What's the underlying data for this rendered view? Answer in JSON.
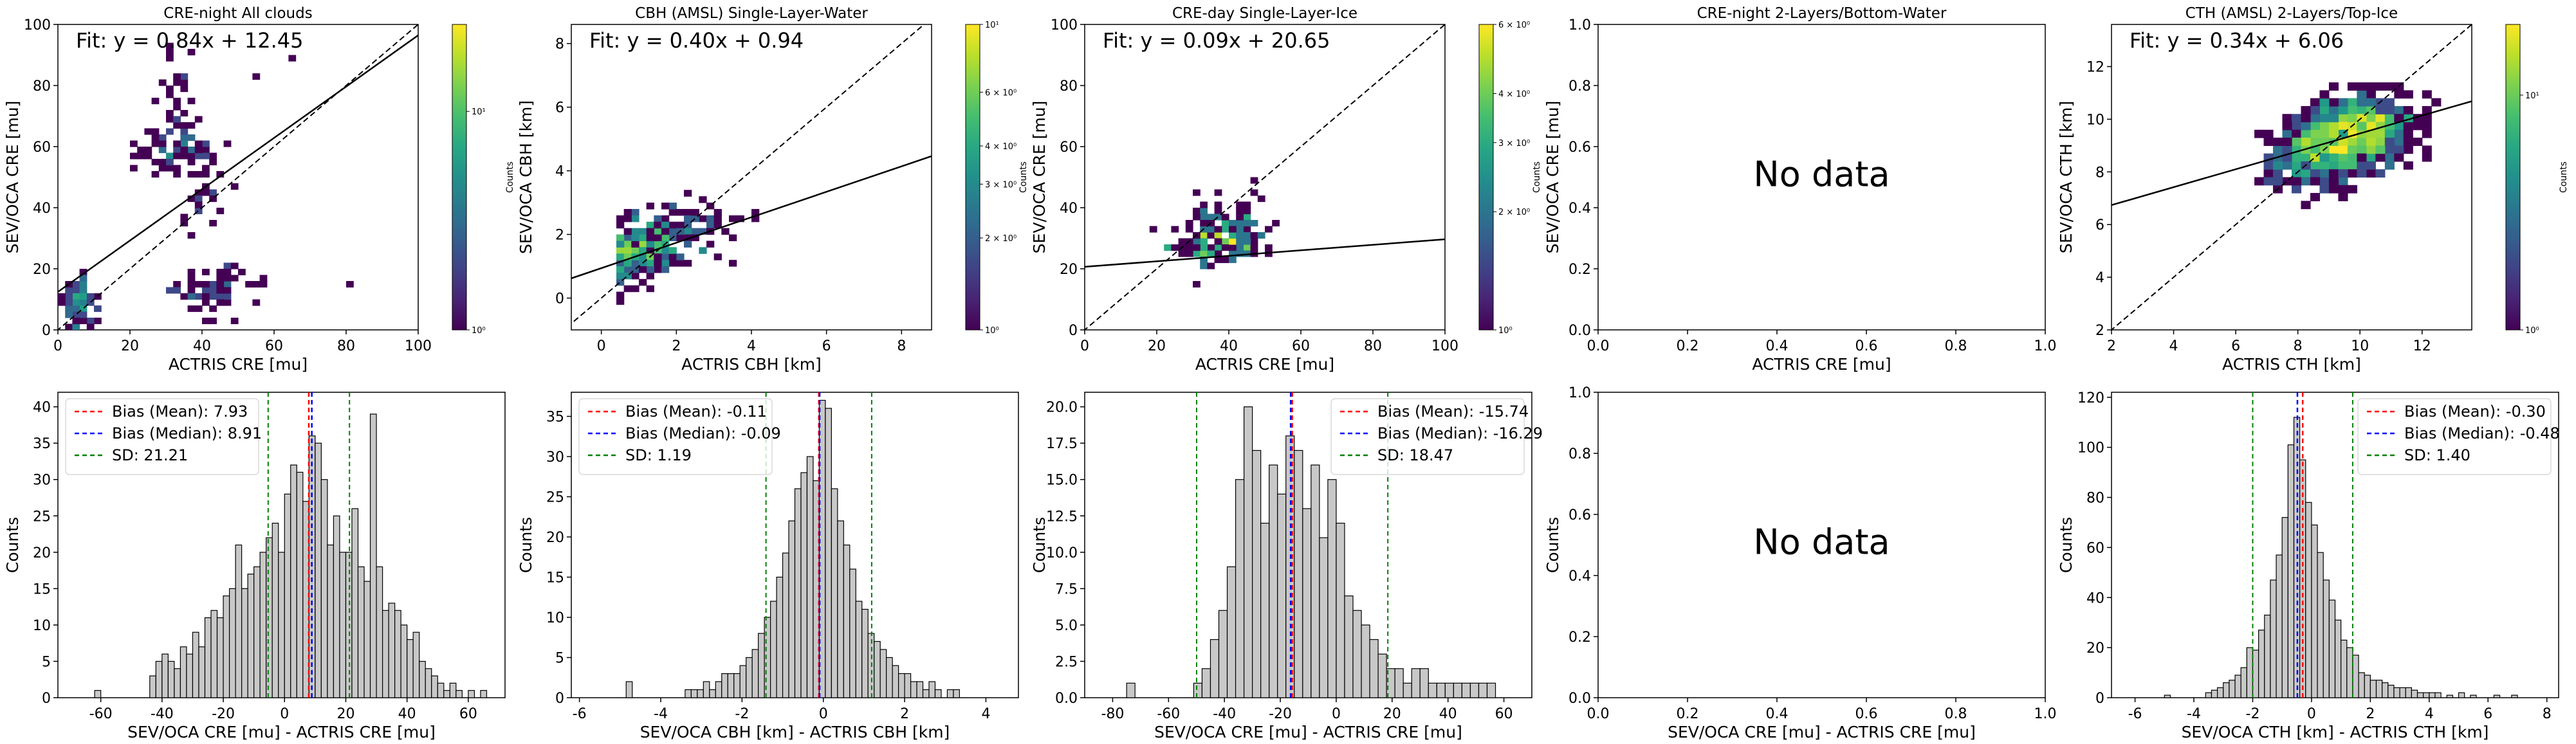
{
  "figure": {
    "colorbar_label": "Counts"
  },
  "chart_data": [
    {
      "type": "heatmap",
      "title": "CRE-night All clouds",
      "xlabel": "ACTRIS CRE [mu]",
      "ylabel": "SEV/OCA CRE [mu]",
      "fit_text": "Fit: y = 0.84x + 12.45",
      "fit": {
        "slope": 0.84,
        "intercept": 12.45
      },
      "xlim": [
        0,
        100
      ],
      "ylim": [
        0,
        100
      ],
      "xticks": [
        0,
        20,
        40,
        60,
        80,
        100
      ],
      "yticks": [
        0,
        20,
        40,
        60,
        80,
        100
      ],
      "bin": 2,
      "colorbar": {
        "scale": "log",
        "ticks": [
          {
            "v": 1,
            "t": "10⁰"
          },
          {
            "v": 10,
            "t": "10¹"
          }
        ],
        "range": [
          1,
          25
        ]
      },
      "grid": false
    },
    {
      "type": "heatmap",
      "title": "CBH (AMSL) Single-Layer-Water",
      "xlabel": "ACTRIS CBH [km]",
      "ylabel": "SEV/OCA CBH [km]",
      "fit_text": "Fit: y = 0.40x + 0.94",
      "fit": {
        "slope": 0.4,
        "intercept": 0.94
      },
      "xlim": [
        -0.8,
        8.8
      ],
      "ylim": [
        -1,
        8.6
      ],
      "xticks": [
        0,
        2,
        4,
        6,
        8
      ],
      "yticks": [
        0,
        2,
        4,
        6,
        8
      ],
      "bin": 0.2,
      "colorbar": {
        "scale": "log",
        "ticks": [
          {
            "v": 1,
            "t": "10⁰"
          },
          {
            "v": 2,
            "t": "2 × 10⁰"
          },
          {
            "v": 3,
            "t": "3 × 10⁰"
          },
          {
            "v": 4,
            "t": "4 × 10⁰"
          },
          {
            "v": 6,
            "t": "6 × 10⁰"
          },
          {
            "v": 10,
            "t": "10¹"
          }
        ],
        "range": [
          1,
          10
        ]
      },
      "grid": false
    },
    {
      "type": "heatmap",
      "title": "CRE-day Single-Layer-Ice",
      "xlabel": "ACTRIS CRE [mu]",
      "ylabel": "SEV/OCA CRE [mu]",
      "fit_text": "Fit: y = 0.09x + 20.65",
      "fit": {
        "slope": 0.09,
        "intercept": 20.65
      },
      "xlim": [
        0,
        100
      ],
      "ylim": [
        0,
        100
      ],
      "xticks": [
        0,
        20,
        40,
        60,
        80,
        100
      ],
      "yticks": [
        0,
        20,
        40,
        60,
        80,
        100
      ],
      "bin": 2,
      "colorbar": {
        "scale": "log",
        "ticks": [
          {
            "v": 1,
            "t": "10⁰"
          },
          {
            "v": 2,
            "t": "2 × 10⁰"
          },
          {
            "v": 3,
            "t": "3 × 10⁰"
          },
          {
            "v": 4,
            "t": "4 × 10⁰"
          },
          {
            "v": 6,
            "t": "6 × 10⁰"
          }
        ],
        "range": [
          1,
          6
        ]
      },
      "grid": false
    },
    {
      "type": "heatmap",
      "title": "CRE-night 2-Layers/Bottom-Water",
      "xlabel": "ACTRIS CRE [mu]",
      "ylabel": "SEV/OCA CRE [mu]",
      "empty_text": "No data",
      "xlim": [
        0,
        1
      ],
      "ylim": [
        0,
        1
      ],
      "xticks": [
        0.0,
        0.2,
        0.4,
        0.6,
        0.8,
        1.0
      ],
      "yticks": [
        0.0,
        0.2,
        0.4,
        0.6,
        0.8,
        1.0
      ],
      "grid": false
    },
    {
      "type": "heatmap",
      "title": "CTH (AMSL) 2-Layers/Top-Ice",
      "xlabel": "ACTRIS CTH [km]",
      "ylabel": "SEV/OCA CTH [km]",
      "fit_text": "Fit: y = 0.34x + 6.06",
      "fit": {
        "slope": 0.34,
        "intercept": 6.06
      },
      "xlim": [
        2,
        13.6
      ],
      "ylim": [
        2,
        13.6
      ],
      "xticks": [
        2,
        4,
        6,
        8,
        10,
        12
      ],
      "yticks": [
        2,
        4,
        6,
        8,
        10,
        12
      ],
      "bin": 0.3,
      "colorbar": {
        "scale": "log",
        "ticks": [
          {
            "v": 1,
            "t": "10⁰"
          },
          {
            "v": 10,
            "t": "10¹"
          }
        ],
        "range": [
          1,
          20
        ]
      },
      "grid": false
    },
    {
      "type": "bar",
      "title": "",
      "xlabel": "SEV/OCA CRE [mu] - ACTRIS CRE [mu]",
      "ylabel": "Counts",
      "xlim": [
        -74,
        72
      ],
      "ylim": [
        0,
        42
      ],
      "xticks": [
        -60,
        -40,
        -20,
        0,
        20,
        40,
        60
      ],
      "yticks": [
        0,
        5,
        10,
        15,
        20,
        25,
        30,
        35,
        40
      ],
      "bins": [
        [
          -62,
          1
        ],
        [
          -44,
          3
        ],
        [
          -42,
          5
        ],
        [
          -40,
          6
        ],
        [
          -38,
          5
        ],
        [
          -36,
          4
        ],
        [
          -34,
          7
        ],
        [
          -32,
          6
        ],
        [
          -30,
          9
        ],
        [
          -28,
          7
        ],
        [
          -26,
          11
        ],
        [
          -24,
          12
        ],
        [
          -22,
          11
        ],
        [
          -20,
          14
        ],
        [
          -18,
          15
        ],
        [
          -16,
          21
        ],
        [
          -14,
          15
        ],
        [
          -12,
          17
        ],
        [
          -10,
          18
        ],
        [
          -8,
          20
        ],
        [
          -6,
          22
        ],
        [
          -4,
          24
        ],
        [
          -2,
          20
        ],
        [
          0,
          28
        ],
        [
          2,
          32
        ],
        [
          4,
          31
        ],
        [
          6,
          27
        ],
        [
          8,
          36
        ],
        [
          10,
          35
        ],
        [
          12,
          30
        ],
        [
          14,
          21
        ],
        [
          16,
          25
        ],
        [
          18,
          20
        ],
        [
          20,
          20
        ],
        [
          22,
          26
        ],
        [
          24,
          18
        ],
        [
          26,
          16
        ],
        [
          28,
          39
        ],
        [
          30,
          18
        ],
        [
          32,
          12
        ],
        [
          34,
          13
        ],
        [
          36,
          12
        ],
        [
          38,
          10
        ],
        [
          40,
          8
        ],
        [
          42,
          9
        ],
        [
          44,
          5
        ],
        [
          46,
          4
        ],
        [
          48,
          3
        ],
        [
          50,
          2
        ],
        [
          52,
          1
        ],
        [
          54,
          2
        ],
        [
          56,
          1
        ],
        [
          60,
          1
        ],
        [
          64,
          1
        ]
      ],
      "bin_width": 2,
      "lines": [
        {
          "name": "Bias (Mean)",
          "label": "Bias (Mean): 7.93",
          "x": 7.93,
          "color": "#ff0000"
        },
        {
          "name": "Bias (Median)",
          "label": "Bias (Median): 8.91",
          "x": 8.91,
          "color": "#0000ff"
        },
        {
          "name": "SD",
          "label": "SD: 21.21",
          "x": 21.21,
          "color": "#008000"
        }
      ],
      "legend_position": "top-left"
    },
    {
      "type": "bar",
      "title": "",
      "xlabel": "SEV/OCA CBH [km] - ACTRIS CBH [km]",
      "ylabel": "Counts",
      "xlim": [
        -6.2,
        4.8
      ],
      "ylim": [
        0,
        38
      ],
      "xticks": [
        -6,
        -4,
        -2,
        0,
        2,
        4
      ],
      "yticks": [
        0,
        5,
        10,
        15,
        20,
        25,
        30,
        35
      ],
      "bins": [
        [
          -4.85,
          2
        ],
        [
          -3.4,
          1
        ],
        [
          -3.25,
          1
        ],
        [
          -3.1,
          1
        ],
        [
          -2.95,
          2
        ],
        [
          -2.8,
          1
        ],
        [
          -2.65,
          2
        ],
        [
          -2.5,
          3
        ],
        [
          -2.35,
          3
        ],
        [
          -2.2,
          3
        ],
        [
          -2.05,
          4
        ],
        [
          -1.9,
          5
        ],
        [
          -1.75,
          6
        ],
        [
          -1.6,
          8
        ],
        [
          -1.45,
          10
        ],
        [
          -1.3,
          12
        ],
        [
          -1.15,
          15
        ],
        [
          -1.0,
          18
        ],
        [
          -0.85,
          22
        ],
        [
          -0.7,
          26
        ],
        [
          -0.55,
          28
        ],
        [
          -0.4,
          30
        ],
        [
          -0.25,
          27
        ],
        [
          -0.1,
          37
        ],
        [
          0.05,
          36
        ],
        [
          0.2,
          26
        ],
        [
          0.35,
          22
        ],
        [
          0.5,
          19
        ],
        [
          0.65,
          16
        ],
        [
          0.8,
          12
        ],
        [
          0.95,
          11
        ],
        [
          1.1,
          8
        ],
        [
          1.25,
          7
        ],
        [
          1.4,
          6
        ],
        [
          1.55,
          5
        ],
        [
          1.7,
          4
        ],
        [
          1.85,
          3
        ],
        [
          2.0,
          3
        ],
        [
          2.15,
          2
        ],
        [
          2.3,
          2
        ],
        [
          2.45,
          1
        ],
        [
          2.6,
          2
        ],
        [
          2.75,
          1
        ],
        [
          3.05,
          1
        ],
        [
          3.2,
          1
        ]
      ],
      "bin_width": 0.15,
      "lines": [
        {
          "name": "Bias (Mean)",
          "label": "Bias (Mean): -0.11",
          "x": -0.11,
          "color": "#ff0000"
        },
        {
          "name": "Bias (Median)",
          "label": "Bias (Median): -0.09",
          "x": -0.09,
          "color": "#0000ff"
        },
        {
          "name": "SD",
          "label": "SD: 1.19",
          "x": 1.19,
          "color": "#008000"
        }
      ],
      "legend_position": "top-left"
    },
    {
      "type": "bar",
      "title": "",
      "xlabel": "SEV/OCA CRE [mu] - ACTRIS CRE [mu]",
      "ylabel": "Counts",
      "xlim": [
        -90,
        70
      ],
      "ylim": [
        0,
        21
      ],
      "xticks": [
        -80,
        -60,
        -40,
        -20,
        0,
        20,
        40,
        60
      ],
      "yticks": [
        0.0,
        2.5,
        5.0,
        7.5,
        10.0,
        12.5,
        15.0,
        17.5,
        20.0
      ],
      "bins": [
        [
          -75,
          1
        ],
        [
          -51,
          1
        ],
        [
          -48,
          2
        ],
        [
          -45,
          4
        ],
        [
          -42,
          6
        ],
        [
          -39,
          9
        ],
        [
          -36,
          15
        ],
        [
          -33,
          20
        ],
        [
          -30,
          17
        ],
        [
          -27,
          12
        ],
        [
          -24,
          16
        ],
        [
          -21,
          14
        ],
        [
          -18,
          18
        ],
        [
          -15,
          17
        ],
        [
          -12,
          13
        ],
        [
          -9,
          16
        ],
        [
          -6,
          11
        ],
        [
          -3,
          15
        ],
        [
          0,
          12
        ],
        [
          3,
          7
        ],
        [
          6,
          6
        ],
        [
          9,
          5
        ],
        [
          12,
          4
        ],
        [
          15,
          3
        ],
        [
          18,
          2
        ],
        [
          21,
          2
        ],
        [
          24,
          1
        ],
        [
          27,
          2
        ],
        [
          30,
          2
        ],
        [
          33,
          1
        ],
        [
          36,
          1
        ],
        [
          39,
          1
        ],
        [
          42,
          1
        ],
        [
          45,
          1
        ],
        [
          48,
          1
        ],
        [
          51,
          1
        ],
        [
          54,
          1
        ]
      ],
      "bin_width": 3,
      "lines": [
        {
          "name": "Bias (Mean)",
          "label": "Bias (Mean): -15.74",
          "x": -15.74,
          "color": "#ff0000"
        },
        {
          "name": "Bias (Median)",
          "label": "Bias (Median): -16.29",
          "x": -16.29,
          "color": "#0000ff"
        },
        {
          "name": "SD",
          "label": "SD: 18.47",
          "x": 18.47,
          "color": "#008000"
        }
      ],
      "legend_position": "top-right"
    },
    {
      "type": "bar",
      "title": "",
      "xlabel": "SEV/OCA CRE [mu] - ACTRIS CRE [mu]",
      "ylabel": "Counts",
      "empty_text": "No data",
      "xlim": [
        0,
        1
      ],
      "ylim": [
        0,
        1
      ],
      "xticks": [
        0.0,
        0.2,
        0.4,
        0.6,
        0.8,
        1.0
      ],
      "yticks": [
        0.0,
        0.2,
        0.4,
        0.6,
        0.8,
        1.0
      ],
      "bins": [],
      "lines": []
    },
    {
      "type": "bar",
      "title": "",
      "xlabel": "SEV/OCA CTH [km] - ACTRIS CTH [km]",
      "ylabel": "Counts",
      "xlim": [
        -6.8,
        8.4
      ],
      "ylim": [
        0,
        122
      ],
      "xticks": [
        -6,
        -4,
        -2,
        0,
        2,
        4,
        6,
        8
      ],
      "yticks": [
        0,
        20,
        40,
        60,
        80,
        100,
        120
      ],
      "bins": [
        [
          -5.0,
          1
        ],
        [
          -3.6,
          2
        ],
        [
          -3.4,
          3
        ],
        [
          -3.2,
          4
        ],
        [
          -3.0,
          6
        ],
        [
          -2.8,
          7
        ],
        [
          -2.6,
          9
        ],
        [
          -2.4,
          12
        ],
        [
          -2.2,
          20
        ],
        [
          -2.0,
          19
        ],
        [
          -1.8,
          27
        ],
        [
          -1.6,
          33
        ],
        [
          -1.4,
          47
        ],
        [
          -1.2,
          57
        ],
        [
          -1.0,
          72
        ],
        [
          -0.8,
          101
        ],
        [
          -0.6,
          112
        ],
        [
          -0.4,
          95
        ],
        [
          -0.2,
          78
        ],
        [
          0.0,
          69
        ],
        [
          0.2,
          58
        ],
        [
          0.4,
          47
        ],
        [
          0.6,
          39
        ],
        [
          0.8,
          31
        ],
        [
          1.0,
          23
        ],
        [
          1.2,
          20
        ],
        [
          1.4,
          17
        ],
        [
          1.6,
          10
        ],
        [
          1.8,
          9
        ],
        [
          2.0,
          7
        ],
        [
          2.2,
          7
        ],
        [
          2.4,
          6
        ],
        [
          2.6,
          5
        ],
        [
          2.8,
          4
        ],
        [
          3.0,
          4
        ],
        [
          3.2,
          4
        ],
        [
          3.4,
          3
        ],
        [
          3.6,
          2
        ],
        [
          3.8,
          2
        ],
        [
          4.0,
          2
        ],
        [
          4.2,
          2
        ],
        [
          4.6,
          1
        ],
        [
          5.0,
          2
        ],
        [
          5.4,
          1
        ],
        [
          6.2,
          1
        ],
        [
          6.8,
          1
        ]
      ],
      "bin_width": 0.2,
      "lines": [
        {
          "name": "Bias (Mean)",
          "label": "Bias (Mean): -0.30",
          "x": -0.3,
          "color": "#ff0000"
        },
        {
          "name": "Bias (Median)",
          "label": "Bias (Median): -0.48",
          "x": -0.48,
          "color": "#0000ff"
        },
        {
          "name": "SD",
          "label": "SD: 1.40",
          "x": 1.4,
          "color": "#008000"
        }
      ],
      "legend_position": "top-right"
    }
  ]
}
